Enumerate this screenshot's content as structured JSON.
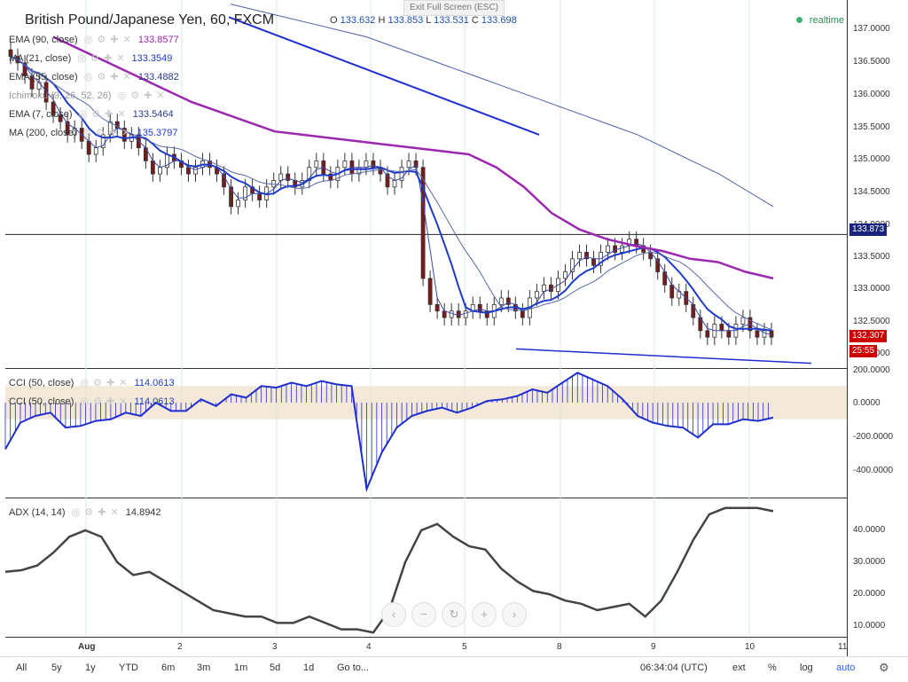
{
  "header": {
    "title": "British Pound/Japanese Yen, 60, FXCM",
    "ohlc_o_label": "O",
    "ohlc_o": "133.632",
    "ohlc_h_label": "H",
    "ohlc_h": "133.853",
    "ohlc_l_label": "L",
    "ohlc_l": "133.531",
    "ohlc_c_label": "C",
    "ohlc_c": "133.698",
    "realtime": "realtime",
    "exit_fullscreen": "Exit Full Screen (ESC)"
  },
  "indicators": [
    {
      "label": "EMA (90, close)",
      "value": "133.8577",
      "color": "#9c27b0"
    },
    {
      "label": "MA (21, close)",
      "value": "133.3549",
      "color": "#1f3cc9"
    },
    {
      "label": "EMA (55, close)",
      "value": "133.4882",
      "color": "#2a3a8f"
    },
    {
      "label": "Ichimoku (9, 26, 52, 26)",
      "value": "",
      "color": "#666666"
    },
    {
      "label": "EMA (7, close)",
      "value": "133.5464",
      "color": "#2a3a8f"
    },
    {
      "label": "MA (200, close)",
      "value": "135.3797",
      "color": "#1f3cc9"
    }
  ],
  "cci_panel": {
    "rows": [
      {
        "label": "CCI (50, close)",
        "value": "114.0613"
      },
      {
        "label": "CCI (50, close)",
        "value": "114.0613"
      }
    ],
    "y_ticks": [
      "200.0000",
      "0.0000",
      "-200.0000",
      "-400.0000"
    ]
  },
  "adx_panel": {
    "label": "ADX (14, 14)",
    "value": "14.8942",
    "y_ticks": [
      "40.0000",
      "30.0000",
      "20.0000",
      "10.0000"
    ]
  },
  "price_axis": {
    "ticks": [
      "137.0000",
      "136.5000",
      "136.0000",
      "135.5000",
      "135.0000",
      "134.5000",
      "134.0000",
      "133.5000",
      "133.0000",
      "132.5000",
      "132.0000"
    ],
    "tag_horizontal": "133.873",
    "tag_last": "132.307",
    "tag_countdown": "25:55"
  },
  "time_axis": [
    "Aug",
    "2",
    "3",
    "4",
    "5",
    "8",
    "9",
    "10",
    "11"
  ],
  "bottom_bar": {
    "ranges": [
      "All",
      "5y",
      "1y",
      "YTD",
      "6m",
      "3m",
      "1m",
      "5d",
      "1d"
    ],
    "goto": "Go to...",
    "clock": "06:34:04 (UTC)",
    "ext": "ext",
    "percent": "%",
    "log": "log",
    "auto": "auto"
  },
  "colors": {
    "up": "#7a1a1a",
    "down": "#7a1a1a",
    "ema90": "#9c27b0",
    "ma21": "#1f3cc9",
    "ema55": "#3b4aa8",
    "ma200": "#4a5fa8",
    "trendline": "#1f2fcf",
    "cci": "#1f2fcf",
    "cci_band": "#f0e0c8",
    "adx": "#444444",
    "price_tag": "#cc0000",
    "hline_tag": "#1a237e"
  },
  "chart_data": {
    "type": "candlestick",
    "title": "British Pound/Japanese Yen, 60, FXCM",
    "x_ticks": [
      "Aug",
      "2",
      "3",
      "4",
      "5",
      "8",
      "9",
      "10",
      "11"
    ],
    "ylim": [
      131.8,
      137.3
    ],
    "horizontal_line": 133.873,
    "last_price": 132.307,
    "closes": [
      136.6,
      136.5,
      136.3,
      136.1,
      136.2,
      135.9,
      135.7,
      135.6,
      135.4,
      135.5,
      135.3,
      135.1,
      135.2,
      135.4,
      135.6,
      135.5,
      135.3,
      135.4,
      135.2,
      135.0,
      134.8,
      134.9,
      135.1,
      135.0,
      134.9,
      134.8,
      134.9,
      135.0,
      134.9,
      134.8,
      134.6,
      134.3,
      134.4,
      134.6,
      134.5,
      134.4,
      134.6,
      134.7,
      134.8,
      134.7,
      134.6,
      134.7,
      134.9,
      135.0,
      134.8,
      134.7,
      134.9,
      135.0,
      134.8,
      134.9,
      135.0,
      134.9,
      134.8,
      134.6,
      134.7,
      134.9,
      135.0,
      134.9,
      133.2,
      132.8,
      132.7,
      132.6,
      132.7,
      132.6,
      132.7,
      132.8,
      132.7,
      132.6,
      132.8,
      132.9,
      132.8,
      132.7,
      132.6,
      132.9,
      133.0,
      133.1,
      133.0,
      133.2,
      133.3,
      133.5,
      133.6,
      133.5,
      133.4,
      133.6,
      133.7,
      133.6,
      133.7,
      133.8,
      133.7,
      133.6,
      133.5,
      133.3,
      133.1,
      132.9,
      133.0,
      132.8,
      132.6,
      132.4,
      132.3,
      132.5,
      132.4,
      132.3,
      132.5,
      132.6,
      132.4,
      132.3,
      132.4,
      132.3
    ],
    "ema90": [
      136.9,
      136.7,
      136.5,
      136.3,
      136.1,
      135.9,
      135.75,
      135.6,
      135.45,
      135.4,
      135.35,
      135.3,
      135.25,
      135.2,
      135.15,
      135.1,
      134.9,
      134.6,
      134.2,
      133.95,
      133.8,
      133.7,
      133.62,
      133.5,
      133.45,
      133.3,
      133.2
    ],
    "cci_values": [
      -280,
      -120,
      -80,
      -60,
      -150,
      -140,
      -110,
      -100,
      -60,
      -80,
      0,
      -50,
      -50,
      20,
      -20,
      50,
      30,
      100,
      90,
      120,
      100,
      130,
      110,
      100,
      -520,
      -300,
      -150,
      -80,
      -50,
      -30,
      -60,
      -30,
      10,
      20,
      40,
      80,
      60,
      120,
      180,
      140,
      100,
      20,
      -80,
      -120,
      -140,
      -150,
      -210,
      -130,
      -130,
      -100,
      -110,
      -90
    ],
    "adx_values": [
      27,
      27.5,
      29,
      33,
      38,
      40,
      38,
      30,
      26,
      27,
      24,
      21,
      18,
      15,
      14,
      13,
      13,
      11,
      11,
      13,
      11,
      9,
      9,
      8,
      15,
      30,
      40,
      42,
      38,
      35,
      34,
      28,
      24,
      21,
      20,
      18,
      17,
      15,
      16,
      17,
      13,
      18,
      27,
      37,
      45,
      47,
      47,
      47,
      46
    ]
  }
}
